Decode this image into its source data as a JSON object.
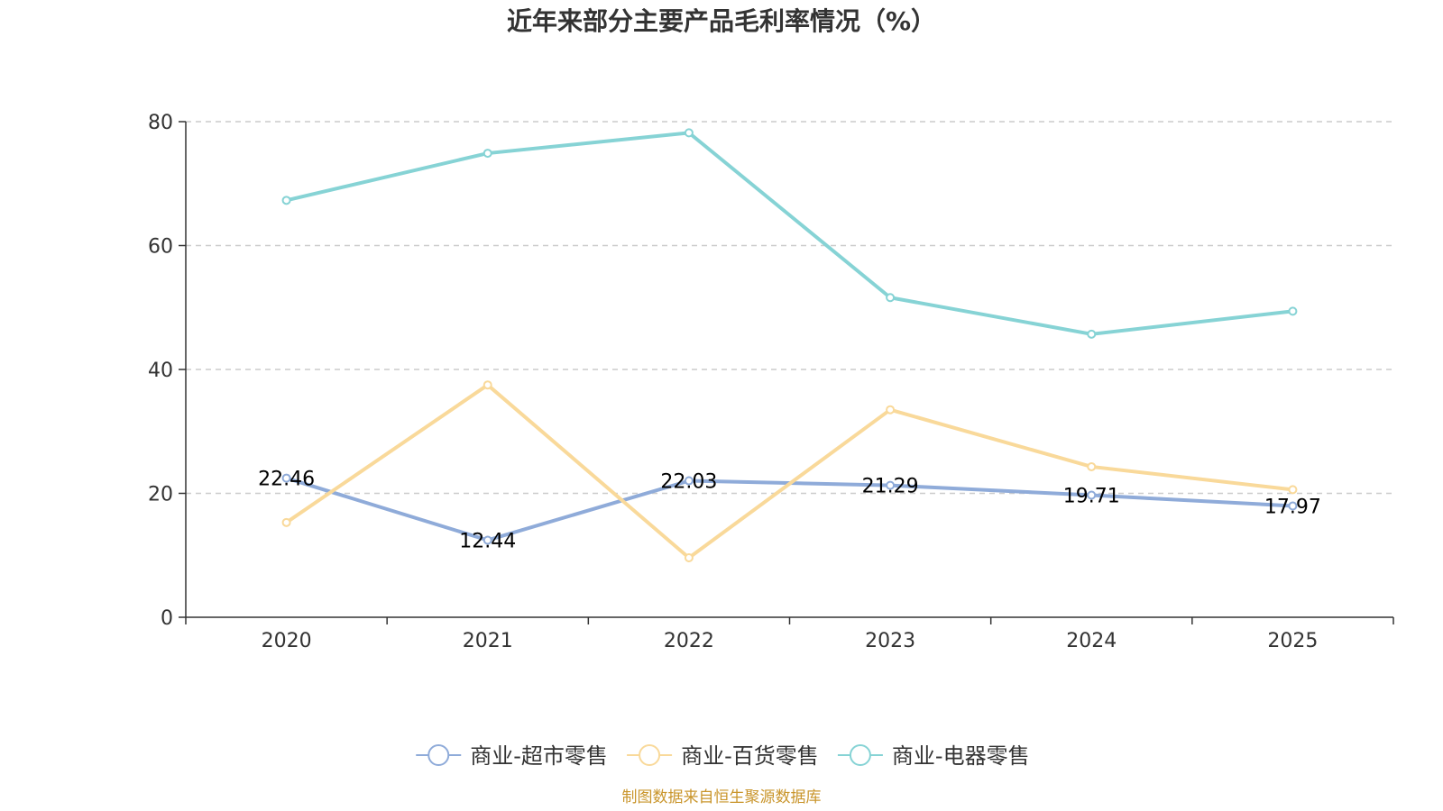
{
  "chart_data": {
    "type": "line",
    "title": "近年来部分主要产品毛利率情况（%）",
    "xlabel": "",
    "ylabel": "",
    "categories": [
      "2020",
      "2021",
      "2022",
      "2023",
      "2024",
      "2025"
    ],
    "ylim": [
      0,
      80
    ],
    "yticks": [
      0,
      20,
      40,
      60,
      80
    ],
    "grid": true,
    "legend_position": "bottom",
    "series": [
      {
        "name": "商业-超市零售",
        "color": "#8fabd9",
        "values": [
          22.46,
          12.44,
          22.03,
          21.29,
          19.71,
          17.97
        ],
        "labels": [
          "22.46",
          "12.44",
          "22.03",
          "21.29",
          "19.71",
          "17.97"
        ]
      },
      {
        "name": "商业-百货零售",
        "color": "#f9d99a",
        "values": [
          15.3,
          37.5,
          9.6,
          33.5,
          24.3,
          20.6
        ]
      },
      {
        "name": "商业-电器零售",
        "color": "#86d3d5",
        "values": [
          67.3,
          74.9,
          78.2,
          51.6,
          45.7,
          49.4
        ]
      }
    ]
  },
  "source_note": "制图数据来自恒生聚源数据库",
  "source_color": "#c9952b"
}
